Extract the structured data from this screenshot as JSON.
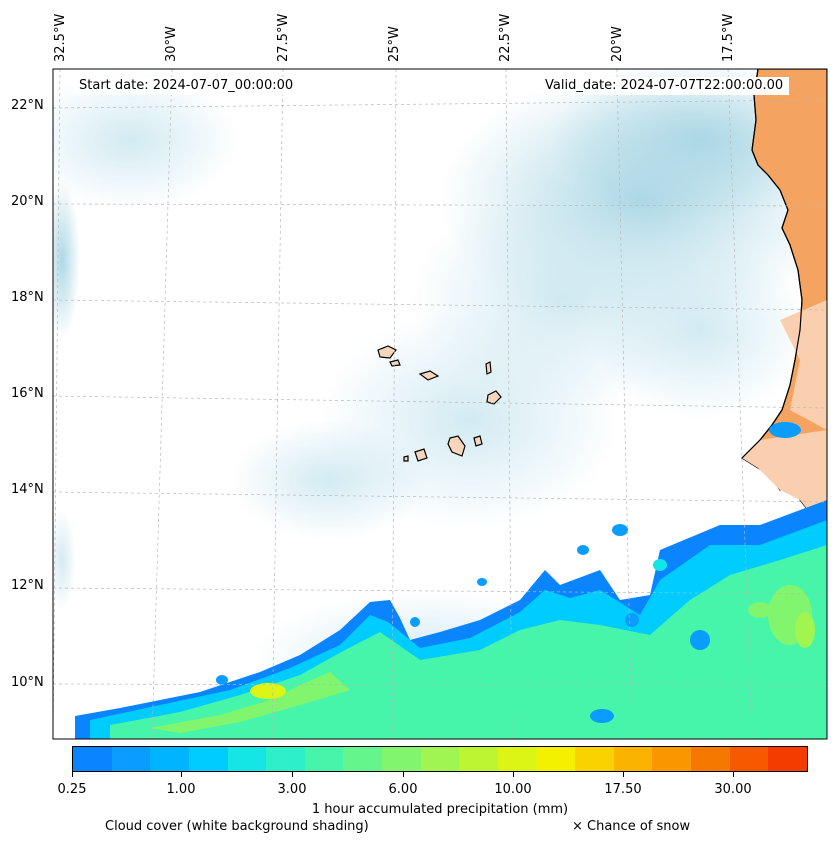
{
  "map": {
    "start_date_label": "Start date: 2024-07-07_00:00:00",
    "valid_date_label": "Valid_date: 2024-07-07T22:00:00.00",
    "longitude_labels": [
      "32.5°W",
      "30°W",
      "27.5°W",
      "25°W",
      "22.5°W",
      "20°W",
      "17.5°W"
    ],
    "latitude_labels": [
      "22°N",
      "20°N",
      "18°N",
      "16°N",
      "14°N",
      "12°N",
      "10°N"
    ],
    "land_color": "#f4a460",
    "island_fill": "#f5d6bc",
    "cloud_color": "#a9d6e4"
  },
  "colorbar": {
    "label": "1 hour accumulated precipitation (mm)",
    "tick_labels": [
      "0.25",
      "1.00",
      "3.00",
      "6.00",
      "10.00",
      "17.50",
      "30.00"
    ],
    "colors": [
      "#0a84ff",
      "#0a9cff",
      "#00b4ff",
      "#00ccff",
      "#14e6e6",
      "#2ef0c8",
      "#46f5aa",
      "#64f58c",
      "#82f56e",
      "#a0f550",
      "#bef532",
      "#dcf514",
      "#f5f000",
      "#fad200",
      "#fab400",
      "#fa9600",
      "#f57800",
      "#f55a00",
      "#f53c00"
    ]
  },
  "legend": {
    "cloud_note": "Cloud cover (white background shading)",
    "snow_note": "× Chance of snow"
  }
}
